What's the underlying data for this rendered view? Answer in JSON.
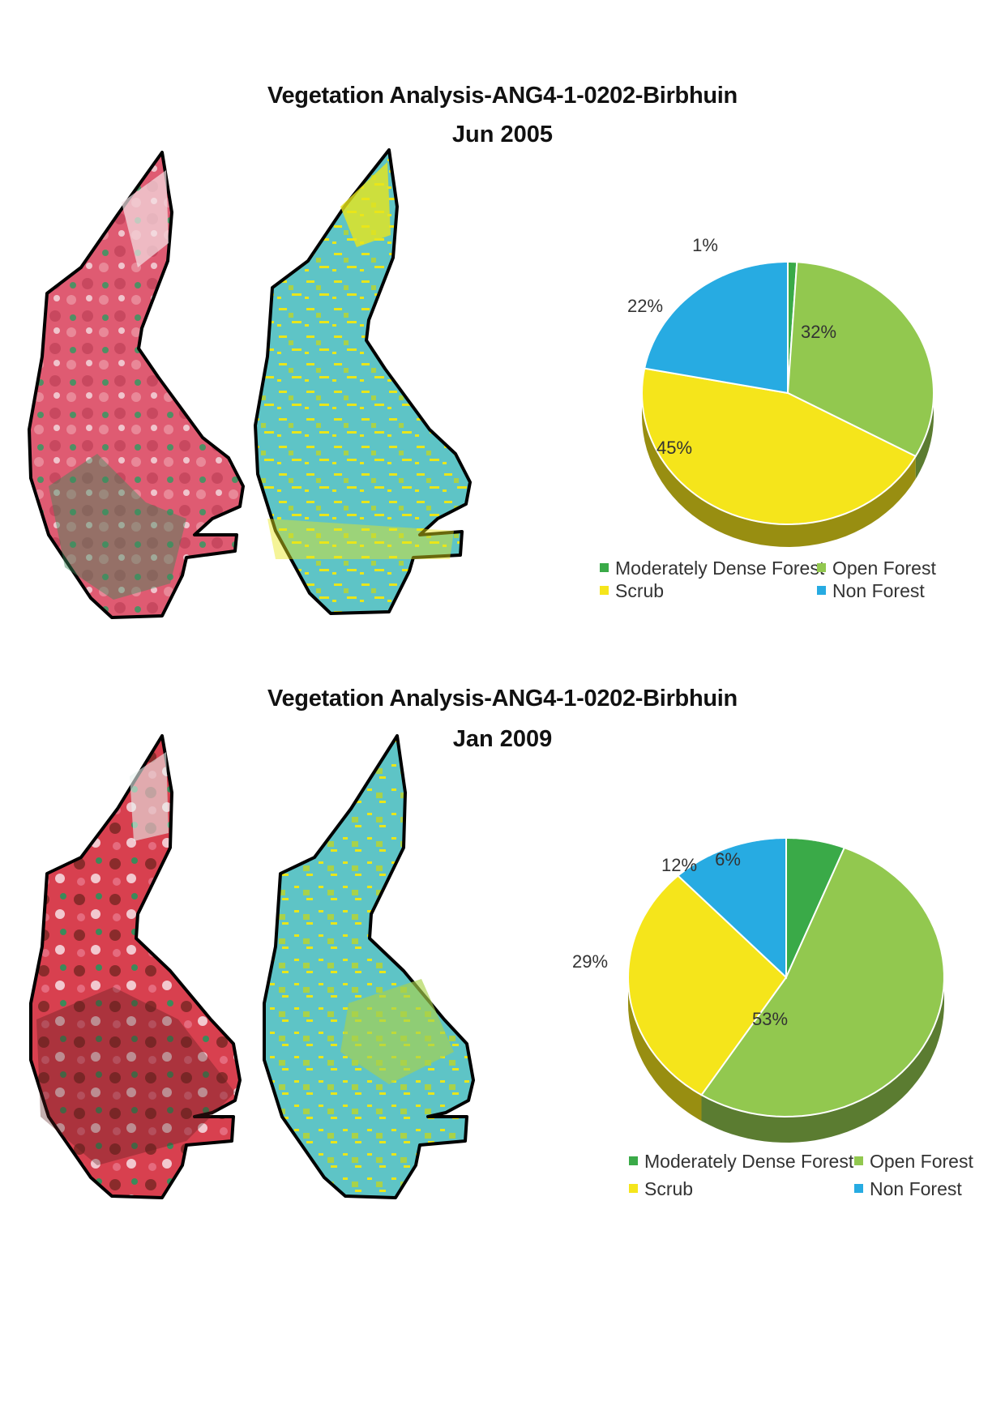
{
  "chart_data": [
    {
      "type": "pie",
      "title": "Vegetation Analysis-ANG4-1-0202-Birbhuin",
      "subtitle": "Jun 2005",
      "categories": [
        "Moderately Dense Forest",
        "Open Forest",
        "Scrub",
        "Non Forest"
      ],
      "values": [
        1,
        32,
        45,
        22
      ],
      "labels": [
        "1%",
        "32%",
        "45%",
        "22%"
      ],
      "colors": [
        "#3aaa48",
        "#92c84f",
        "#f5e51b",
        "#27abe2"
      ],
      "legend_position": "bottom"
    },
    {
      "type": "pie",
      "title": "Vegetation Analysis-ANG4-1-0202-Birbhuin",
      "subtitle": "Jan 2009",
      "categories": [
        "Moderately Dense Forest",
        "Open Forest",
        "Scrub",
        "Non Forest"
      ],
      "values": [
        6,
        53,
        29,
        12
      ],
      "labels": [
        "6%",
        "53%",
        "29%",
        "12%"
      ],
      "colors": [
        "#3aaa48",
        "#92c84f",
        "#f5e51b",
        "#27abe2"
      ],
      "legend_position": "bottom"
    }
  ],
  "maps": {
    "fcc_colors": [
      "#e0506a",
      "#d9697f",
      "#3b8a5a",
      "#f3d6dc",
      "#8a2b2b"
    ],
    "classified_colors": [
      "#5cc3c6",
      "#e9e61a"
    ]
  }
}
